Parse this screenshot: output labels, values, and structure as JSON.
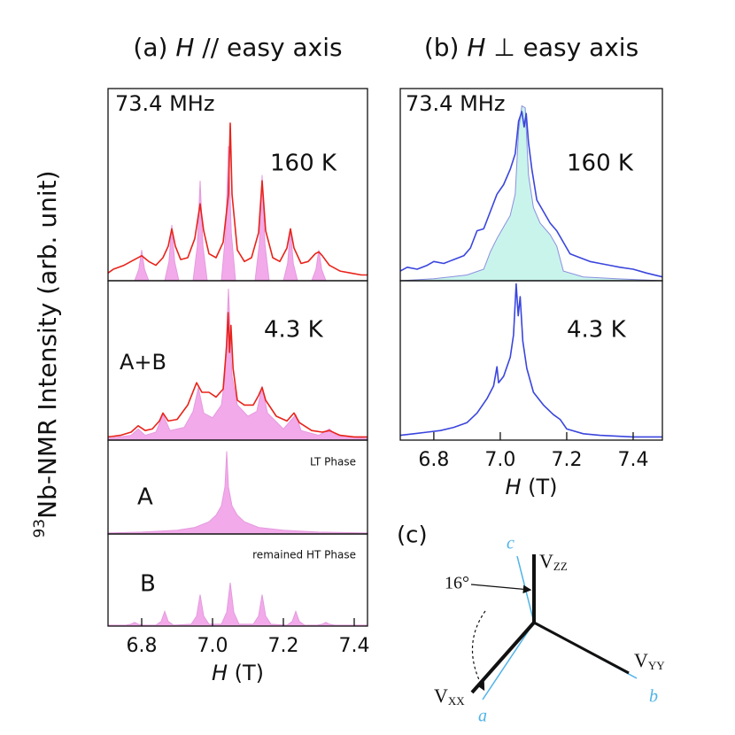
{
  "chart_data": [
    {
      "type": "line",
      "title": {
        "label": "(a)",
        "symbol": "H",
        "text": "// easy axis"
      },
      "xlim": [
        6.705,
        7.4375
      ],
      "ylim": [
        0,
        1
      ],
      "annotations": [
        "73.4 MHz",
        "160 K"
      ],
      "series": [
        {
          "style": "area",
          "fill": "#f2aaea",
          "color": "#e59ade",
          "x": [
            6.78,
            6.792,
            6.8,
            6.808,
            6.82,
            6.865,
            6.877,
            6.885,
            6.893,
            6.905,
            6.945,
            6.957,
            6.965,
            6.973,
            6.985,
            7.025,
            7.037,
            7.045,
            7.053,
            7.065,
            7.12,
            7.132,
            7.14,
            7.148,
            7.16,
            7.2,
            7.212,
            7.22,
            7.228,
            7.24,
            7.28,
            7.292,
            7.3,
            7.308,
            7.32
          ],
          "values": [
            0,
            0.06,
            0.16,
            0.06,
            0,
            0,
            0.1,
            0.29,
            0.1,
            0,
            0,
            0.18,
            0.52,
            0.18,
            0,
            0,
            0.25,
            0.7,
            0.25,
            0,
            0,
            0.19,
            0.55,
            0.19,
            0,
            0,
            0.09,
            0.27,
            0.09,
            0,
            0,
            0.06,
            0.16,
            0.06,
            0
          ]
        },
        {
          "style": "line",
          "color": "#e8231a",
          "x": [
            6.705,
            6.72,
            6.75,
            6.78,
            6.8,
            6.82,
            6.84,
            6.86,
            6.875,
            6.885,
            6.895,
            6.91,
            6.93,
            6.95,
            6.965,
            6.975,
            6.99,
            7.01,
            7.03,
            7.045,
            7.05,
            7.055,
            7.07,
            7.09,
            7.11,
            7.13,
            7.14,
            7.15,
            7.17,
            7.19,
            7.21,
            7.22,
            7.23,
            7.25,
            7.27,
            7.29,
            7.3,
            7.31,
            7.33,
            7.36,
            7.39,
            7.42,
            7.4375
          ],
          "values": [
            0.04,
            0.06,
            0.08,
            0.11,
            0.13,
            0.1,
            0.08,
            0.12,
            0.18,
            0.27,
            0.18,
            0.11,
            0.12,
            0.22,
            0.4,
            0.26,
            0.14,
            0.12,
            0.2,
            0.45,
            0.82,
            0.45,
            0.16,
            0.1,
            0.12,
            0.25,
            0.52,
            0.26,
            0.12,
            0.1,
            0.17,
            0.27,
            0.17,
            0.09,
            0.1,
            0.14,
            0.15,
            0.13,
            0.08,
            0.05,
            0.04,
            0.03,
            0.03
          ]
        }
      ]
    },
    {
      "type": "line",
      "xlim": [
        6.705,
        7.4375
      ],
      "ylim": [
        0,
        1
      ],
      "annotations": [
        "4.3 K",
        "A+B"
      ],
      "series": [
        {
          "style": "area",
          "fill": "#f2aaea",
          "color": "#e59ade",
          "x": [
            6.705,
            6.77,
            6.79,
            6.81,
            6.84,
            6.86,
            6.88,
            6.92,
            6.945,
            6.96,
            6.975,
            7.0,
            7.025,
            7.035,
            7.045,
            7.055,
            7.07,
            7.1,
            7.125,
            7.14,
            7.155,
            7.2,
            7.235,
            7.25,
            7.3,
            7.33,
            7.35,
            7.4375
          ],
          "values": [
            0.01,
            0.03,
            0.07,
            0.03,
            0.05,
            0.16,
            0.06,
            0.08,
            0.18,
            0.33,
            0.17,
            0.14,
            0.22,
            0.4,
            0.95,
            0.4,
            0.22,
            0.15,
            0.18,
            0.34,
            0.17,
            0.07,
            0.16,
            0.06,
            0.03,
            0.07,
            0.03,
            0.01
          ]
        },
        {
          "style": "line",
          "color": "#e8231a",
          "x": [
            6.705,
            6.74,
            6.77,
            6.79,
            6.81,
            6.83,
            6.85,
            6.86,
            6.875,
            6.9,
            6.93,
            6.955,
            6.97,
            6.99,
            7.01,
            7.03,
            7.04,
            7.044,
            7.048,
            7.052,
            7.058,
            7.07,
            7.09,
            7.115,
            7.13,
            7.14,
            7.15,
            7.18,
            7.21,
            7.23,
            7.245,
            7.28,
            7.31,
            7.33,
            7.36,
            7.4,
            7.4375
          ],
          "values": [
            0.02,
            0.03,
            0.05,
            0.09,
            0.06,
            0.07,
            0.12,
            0.17,
            0.12,
            0.13,
            0.22,
            0.36,
            0.3,
            0.3,
            0.27,
            0.32,
            0.6,
            0.8,
            0.55,
            0.72,
            0.45,
            0.25,
            0.22,
            0.22,
            0.28,
            0.33,
            0.25,
            0.15,
            0.12,
            0.17,
            0.11,
            0.06,
            0.05,
            0.06,
            0.03,
            0.02,
            0.02
          ]
        }
      ]
    },
    {
      "type": "line",
      "xlim": [
        6.705,
        7.4375
      ],
      "ylim": [
        0,
        1
      ],
      "annotations": [
        "A",
        "LT Phase"
      ],
      "series": [
        {
          "style": "area",
          "fill": "#f2aaea",
          "color": "#e59ade",
          "x": [
            6.705,
            6.8,
            6.9,
            6.95,
            6.99,
            7.01,
            7.025,
            7.035,
            7.04,
            7.045,
            7.055,
            7.07,
            7.09,
            7.13,
            7.2,
            7.3,
            7.4375
          ],
          "values": [
            0.01,
            0.02,
            0.04,
            0.07,
            0.13,
            0.2,
            0.3,
            0.5,
            0.88,
            0.5,
            0.3,
            0.2,
            0.13,
            0.07,
            0.04,
            0.02,
            0.01
          ]
        }
      ]
    },
    {
      "type": "line",
      "xlim": [
        6.705,
        7.4375
      ],
      "ylim": [
        0,
        1
      ],
      "annotations": [
        "B",
        "remained HT Phase"
      ],
      "xticks": [
        6.8,
        {
          "value": 7,
          "label": "7.0"
        },
        7.2,
        7.4
      ],
      "xlabel": {
        "symbol": "H",
        "unit": "(T)"
      },
      "series": [
        {
          "style": "area",
          "fill": "#f2aaea",
          "color": "#e59ade",
          "x": [
            6.705,
            6.755,
            6.77,
            6.78,
            6.79,
            6.805,
            6.84,
            6.855,
            6.865,
            6.875,
            6.89,
            6.94,
            6.955,
            6.965,
            6.975,
            6.99,
            7.025,
            7.04,
            7.05,
            7.06,
            7.075,
            7.115,
            7.13,
            7.14,
            7.15,
            7.165,
            7.21,
            7.225,
            7.235,
            7.245,
            7.26,
            7.295,
            7.31,
            7.32,
            7.33,
            7.345,
            7.4375
          ],
          "values": [
            0.01,
            0.01,
            0.02,
            0.04,
            0.02,
            0.01,
            0.01,
            0.05,
            0.16,
            0.05,
            0.01,
            0.02,
            0.11,
            0.34,
            0.11,
            0.02,
            0.02,
            0.15,
            0.47,
            0.15,
            0.02,
            0.02,
            0.11,
            0.34,
            0.11,
            0.02,
            0.01,
            0.05,
            0.16,
            0.05,
            0.01,
            0.01,
            0.02,
            0.04,
            0.02,
            0.01,
            0.01
          ]
        }
      ]
    },
    {
      "type": "line",
      "title": {
        "label": "(b)",
        "symbol": "H",
        "text": "⊥ easy axis"
      },
      "xlim": [
        6.699,
        7.488
      ],
      "ylim": [
        0,
        1
      ],
      "annotations": [
        "73.4 MHz",
        "160 K"
      ],
      "series": [
        {
          "style": "area",
          "fill": "#c9f4ec",
          "color": "#8b8fe0",
          "x": [
            6.699,
            6.8,
            6.9,
            6.95,
            6.97,
            6.99,
            7.01,
            7.03,
            7.045,
            7.055,
            7.065,
            7.075,
            7.085,
            7.1,
            7.12,
            7.15,
            7.17,
            7.19,
            7.25,
            7.35,
            7.488
          ],
          "values": [
            0,
            0.01,
            0.03,
            0.06,
            0.15,
            0.22,
            0.28,
            0.34,
            0.45,
            0.78,
            0.91,
            0.9,
            0.55,
            0.38,
            0.3,
            0.24,
            0.18,
            0.05,
            0.02,
            0.01,
            0
          ]
        },
        {
          "style": "line",
          "color": "#3a45dd",
          "x": [
            6.699,
            6.72,
            6.75,
            6.78,
            6.8,
            6.83,
            6.86,
            6.89,
            6.91,
            6.93,
            6.95,
            6.97,
            6.99,
            7.01,
            7.03,
            7.045,
            7.055,
            7.065,
            7.072,
            7.078,
            7.085,
            7.095,
            7.11,
            7.13,
            7.15,
            7.17,
            7.19,
            7.21,
            7.24,
            7.27,
            7.3,
            7.33,
            7.36,
            7.4,
            7.44,
            7.488
          ],
          "values": [
            0.05,
            0.07,
            0.06,
            0.08,
            0.1,
            0.09,
            0.11,
            0.13,
            0.17,
            0.26,
            0.27,
            0.36,
            0.45,
            0.5,
            0.58,
            0.66,
            0.83,
            0.88,
            0.8,
            0.87,
            0.72,
            0.58,
            0.42,
            0.36,
            0.3,
            0.26,
            0.2,
            0.14,
            0.12,
            0.1,
            0.09,
            0.08,
            0.07,
            0.06,
            0.04,
            0.02
          ]
        }
      ]
    },
    {
      "type": "line",
      "xlim": [
        6.699,
        7.488
      ],
      "ylim": [
        0,
        1
      ],
      "annotations": [
        "4.3 K"
      ],
      "xticks": [
        6.8,
        {
          "value": 7,
          "label": "7.0"
        },
        7.2,
        7.4
      ],
      "xlabel": {
        "symbol": "H",
        "unit": "(T)"
      },
      "series": [
        {
          "style": "line",
          "color": "#3a45dd",
          "x": [
            6.699,
            6.74,
            6.78,
            6.82,
            6.86,
            6.9,
            6.93,
            6.96,
            6.98,
            6.99,
            6.995,
            7.01,
            7.03,
            7.04,
            7.048,
            7.054,
            7.06,
            7.068,
            7.08,
            7.1,
            7.13,
            7.16,
            7.18,
            7.2,
            7.25,
            7.3,
            7.4,
            7.488
          ],
          "values": [
            0.03,
            0.04,
            0.05,
            0.06,
            0.08,
            0.11,
            0.17,
            0.26,
            0.34,
            0.46,
            0.36,
            0.4,
            0.52,
            0.66,
            0.98,
            0.78,
            0.9,
            0.62,
            0.45,
            0.3,
            0.22,
            0.16,
            0.13,
            0.07,
            0.04,
            0.03,
            0.02,
            0.02
          ]
        }
      ]
    }
  ],
  "ylabel": {
    "isotope": "93",
    "text": "Nb-NMR Intensity (arb. unit)"
  },
  "diagram": {
    "label": "(c)",
    "angle": "16°",
    "vzz": {
      "symbol": "V",
      "sub": "ZZ"
    },
    "vyy": {
      "symbol": "V",
      "sub": "YY"
    },
    "vxx": {
      "symbol": "V",
      "sub": "XX"
    },
    "axis_a": "a",
    "axis_b": "b",
    "axis_c": "c"
  }
}
